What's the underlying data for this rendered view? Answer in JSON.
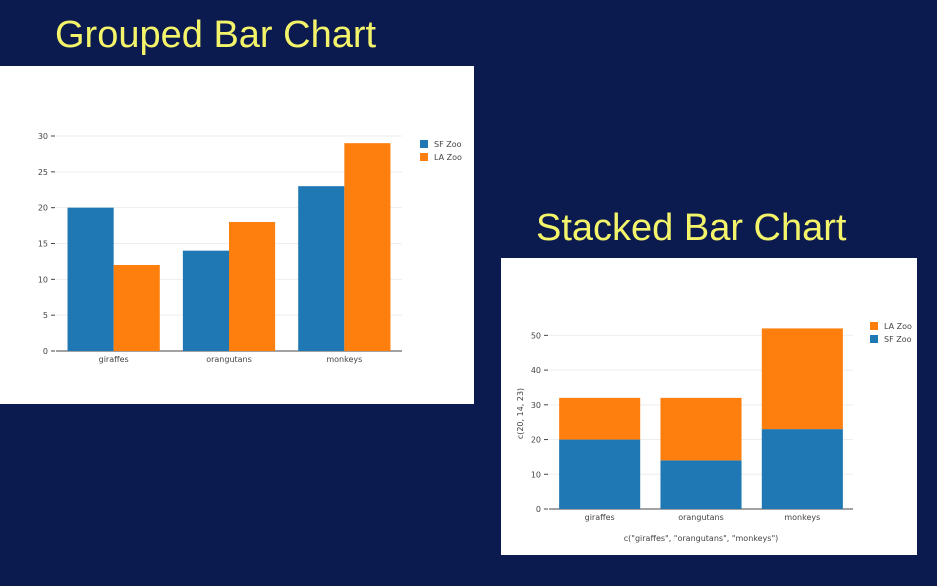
{
  "slide": {
    "grouped_title": "Grouped Bar Chart",
    "stacked_title": "Stacked Bar Chart",
    "background": "#0b1a4f",
    "title_color": "#f4f46a"
  },
  "chart_data": [
    {
      "type": "bar",
      "mode": "grouped",
      "title": "Grouped Bar Chart",
      "categories": [
        "giraffes",
        "orangutans",
        "monkeys"
      ],
      "series": [
        {
          "name": "SF Zoo",
          "values": [
            20,
            14,
            23
          ],
          "color": "#1f77b4"
        },
        {
          "name": "LA Zoo",
          "values": [
            12,
            18,
            29
          ],
          "color": "#ff7f0e"
        }
      ],
      "ylim": [
        0,
        30
      ],
      "yticks": [
        0,
        5,
        10,
        15,
        20,
        25,
        30
      ],
      "xlabel": "",
      "ylabel": "",
      "grid": true,
      "legend": "top-right"
    },
    {
      "type": "bar",
      "mode": "stacked",
      "title": "Stacked Bar Chart",
      "categories": [
        "giraffes",
        "orangutans",
        "monkeys"
      ],
      "series": [
        {
          "name": "SF Zoo",
          "values": [
            20,
            14,
            23
          ],
          "color": "#1f77b4"
        },
        {
          "name": "LA Zoo",
          "values": [
            12,
            18,
            29
          ],
          "color": "#ff7f0e"
        }
      ],
      "legend_order": [
        "LA Zoo",
        "SF Zoo"
      ],
      "ylim": [
        0,
        55
      ],
      "yticks": [
        0,
        10,
        20,
        30,
        40,
        50
      ],
      "xlabel": "c(\"giraffes\", \"orangutans\", \"monkeys\")",
      "ylabel": "c(20, 14, 23)",
      "grid": true,
      "legend": "top-right"
    }
  ]
}
